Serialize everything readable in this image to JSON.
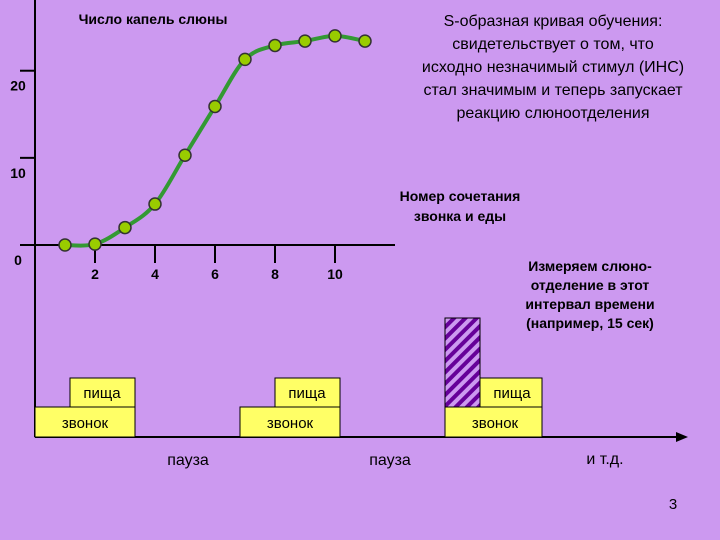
{
  "chart_data": {
    "type": "line",
    "title": "Число капель слюны",
    "x_label_lines": [
      "Номер сочетания",
      "звонка и еды"
    ],
    "annotation_lines": [
      "S-образная кривая обучения:",
      "свидетельствует о том, что",
      "исходно незначимый стимул (ИНС)",
      "стал значимым и теперь запускает",
      "реакцию слюноотделения"
    ],
    "x": [
      1,
      2,
      3,
      4,
      5,
      6,
      7,
      8,
      9,
      10,
      11
    ],
    "series": [
      {
        "color": "#339933",
        "marker_color": "#99cc00",
        "values": [
          0,
          0.1,
          2,
          4.7,
          10.3,
          15.9,
          21.3,
          22.9,
          23.4,
          24,
          23.4
        ]
      }
    ],
    "xlim": [
      0,
      12
    ],
    "ylim": [
      0,
      28
    ],
    "xticks": [
      2,
      4,
      6,
      8,
      10
    ],
    "yticks": [
      0,
      10,
      20
    ]
  },
  "timeline": {
    "trials": [
      {
        "food": "пища",
        "bell": "звонок"
      },
      {
        "food": "пища",
        "bell": "звонок"
      },
      {
        "food": "пища",
        "bell": "звонок"
      }
    ],
    "pauses": [
      "пауза",
      "пауза"
    ],
    "etc": "и т.д.",
    "measure_note_lines": [
      "Измеряем слюно-",
      "отделение в этот",
      "интервал времени",
      "(например, 15 сек)"
    ]
  },
  "page_number": "3"
}
